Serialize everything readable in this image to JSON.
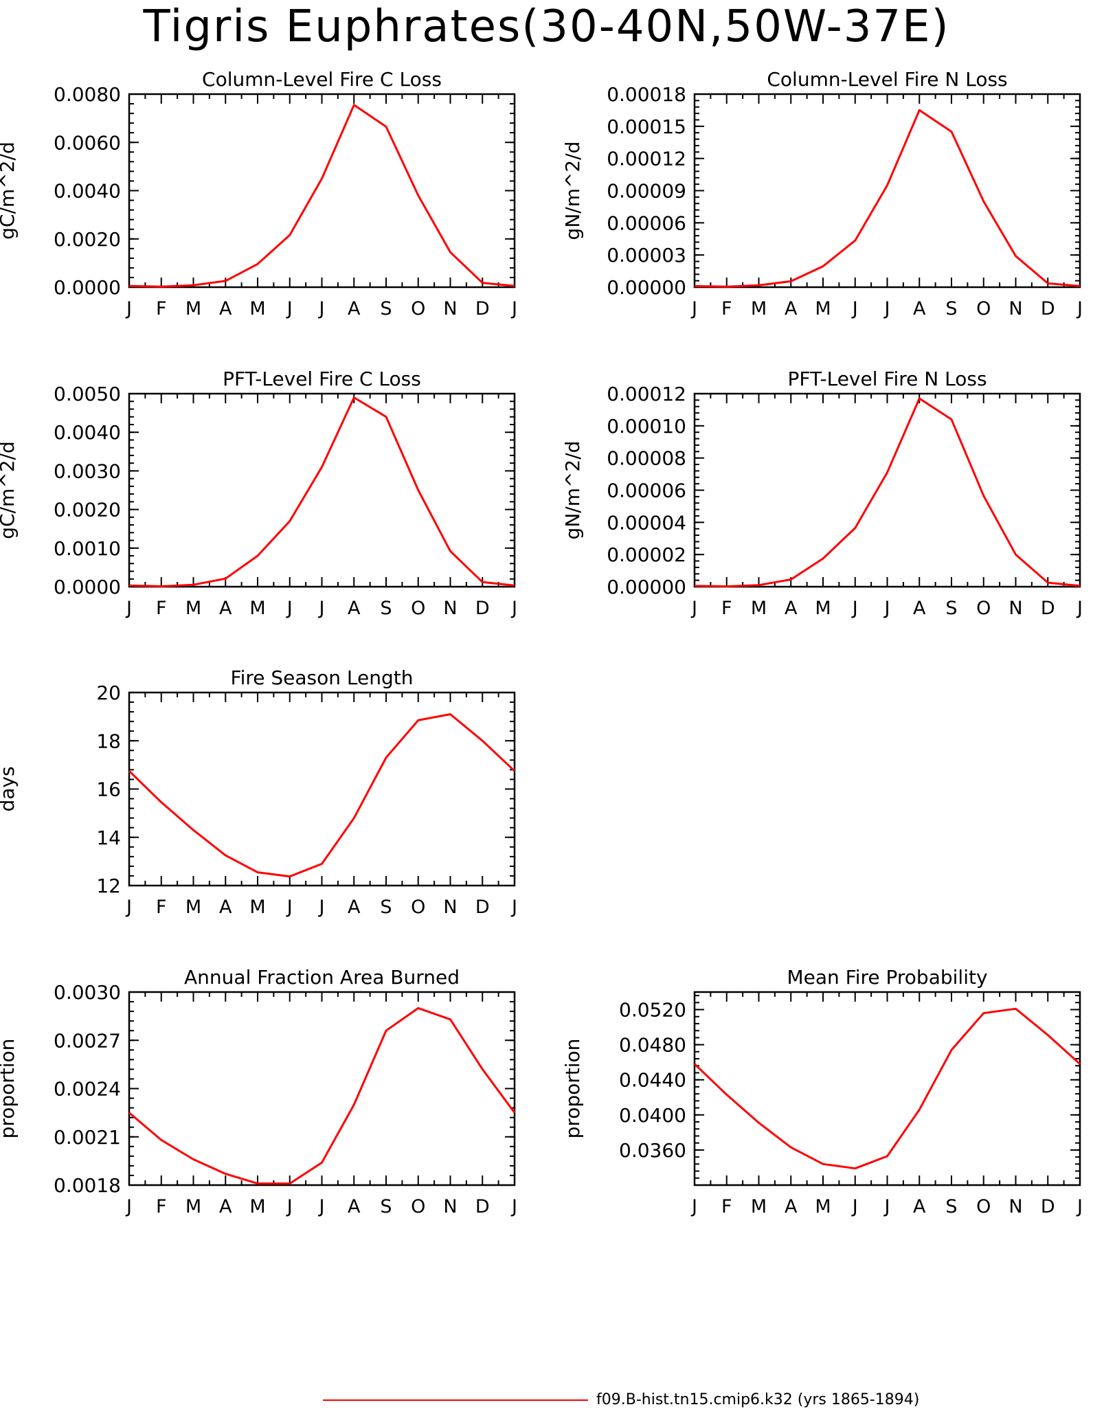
{
  "title": "Tigris Euphrates(30-40N,50W-37E)",
  "legend": {
    "label": "f09.B-hist.tn15.cmip6.k32 (yrs 1865-1894)",
    "color": "#ff0000"
  },
  "chart_data": [
    {
      "type": "line",
      "title": "Column-Level Fire C Loss",
      "ylabel": "gC/m^2/d",
      "categories": [
        "J",
        "F",
        "M",
        "A",
        "M",
        "J",
        "J",
        "A",
        "S",
        "O",
        "N",
        "D",
        "J"
      ],
      "ylim": [
        0,
        0.008
      ],
      "yticks": [
        "0.0000",
        "0.0020",
        "0.0040",
        "0.0060",
        "0.0080"
      ],
      "series": [
        {
          "name": "f09.B-hist.tn15.cmip6.k32 (yrs 1865-1894)",
          "color": "#ff0000",
          "values": [
            5e-05,
            2e-05,
            8e-05,
            0.00026,
            0.00096,
            0.00216,
            0.0045,
            0.00755,
            0.00665,
            0.0038,
            0.00145,
            0.00018,
            5e-05
          ]
        }
      ]
    },
    {
      "type": "line",
      "title": "Column-Level Fire N Loss",
      "ylabel": "gN/m^2/d",
      "categories": [
        "J",
        "F",
        "M",
        "A",
        "M",
        "J",
        "J",
        "A",
        "S",
        "O",
        "N",
        "D",
        "J"
      ],
      "ylim": [
        0,
        0.00018
      ],
      "yticks": [
        "0.00000",
        "0.00003",
        "0.00006",
        "0.00009",
        "0.00012",
        "0.00015",
        "0.00018"
      ],
      "series": [
        {
          "name": "f09.B-hist.tn15.cmip6.k32 (yrs 1865-1894)",
          "color": "#ff0000",
          "values": [
            1e-06,
            5e-07,
            1.8e-06,
            5.5e-06,
            1.95e-05,
            4.35e-05,
            9.5e-05,
            0.000165,
            0.000145,
            8e-05,
            2.9e-05,
            3.5e-06,
            1e-06
          ]
        }
      ]
    },
    {
      "type": "line",
      "title": "PFT-Level Fire C Loss",
      "ylabel": "gC/m^2/d",
      "categories": [
        "J",
        "F",
        "M",
        "A",
        "M",
        "J",
        "J",
        "A",
        "S",
        "O",
        "N",
        "D",
        "J"
      ],
      "ylim": [
        0,
        0.005
      ],
      "yticks": [
        "0.0000",
        "0.0010",
        "0.0020",
        "0.0030",
        "0.0040",
        "0.0050"
      ],
      "series": [
        {
          "name": "f09.B-hist.tn15.cmip6.k32 (yrs 1865-1894)",
          "color": "#ff0000",
          "values": [
            3e-05,
            1e-05,
            5e-05,
            0.00021,
            0.0008,
            0.0017,
            0.0031,
            0.0049,
            0.0044,
            0.0025,
            0.00092,
            0.00012,
            3e-05
          ]
        }
      ]
    },
    {
      "type": "line",
      "title": "PFT-Level Fire N Loss",
      "ylabel": "gN/m^2/d",
      "categories": [
        "J",
        "F",
        "M",
        "A",
        "M",
        "J",
        "J",
        "A",
        "S",
        "O",
        "N",
        "D",
        "J"
      ],
      "ylim": [
        0,
        0.00012
      ],
      "yticks": [
        "0.00000",
        "0.00002",
        "0.00004",
        "0.00006",
        "0.00008",
        "0.00010",
        "0.00012"
      ],
      "series": [
        {
          "name": "f09.B-hist.tn15.cmip6.k32 (yrs 1865-1894)",
          "color": "#ff0000",
          "values": [
            5e-07,
            2e-07,
            1e-06,
            4.5e-06,
            1.75e-05,
            3.65e-05,
            7.1e-05,
            0.000117,
            0.000104,
            5.65e-05,
            2e-05,
            2.5e-06,
            5e-07
          ]
        }
      ]
    },
    {
      "type": "line",
      "title": "Fire Season Length",
      "ylabel": "days",
      "categories": [
        "J",
        "F",
        "M",
        "A",
        "M",
        "J",
        "J",
        "A",
        "S",
        "O",
        "N",
        "D",
        "J"
      ],
      "ylim": [
        12,
        20
      ],
      "yticks": [
        "12",
        "14",
        "16",
        "18",
        "20"
      ],
      "series": [
        {
          "name": "f09.B-hist.tn15.cmip6.k32 (yrs 1865-1894)",
          "color": "#ff0000",
          "values": [
            16.75,
            15.45,
            14.3,
            13.25,
            12.55,
            12.38,
            12.9,
            14.8,
            17.3,
            18.85,
            19.1,
            18.0,
            16.75
          ]
        }
      ]
    },
    {
      "type": "line",
      "title": "Annual Fraction Area Burned",
      "ylabel": "proportion",
      "categories": [
        "J",
        "F",
        "M",
        "A",
        "M",
        "J",
        "J",
        "A",
        "S",
        "O",
        "N",
        "D",
        "J"
      ],
      "ylim": [
        0.0018,
        0.003
      ],
      "yticks": [
        "0.0018",
        "0.0021",
        "0.0024",
        "0.0027",
        "0.0030"
      ],
      "series": [
        {
          "name": "f09.B-hist.tn15.cmip6.k32 (yrs 1865-1894)",
          "color": "#ff0000",
          "values": [
            0.00225,
            0.00208,
            0.00196,
            0.00187,
            0.00181,
            0.00181,
            0.00194,
            0.0023,
            0.00276,
            0.0029,
            0.00283,
            0.00252,
            0.00225
          ]
        }
      ]
    },
    {
      "type": "line",
      "title": "Mean Fire Probability",
      "ylabel": "proportion",
      "categories": [
        "J",
        "F",
        "M",
        "A",
        "M",
        "J",
        "J",
        "A",
        "S",
        "O",
        "N",
        "D",
        "J"
      ],
      "ylim": [
        0.032,
        0.054
      ],
      "yticks": [
        "0.0360",
        "0.0400",
        "0.0440",
        "0.0480",
        "0.0520"
      ],
      "series": [
        {
          "name": "f09.B-hist.tn15.cmip6.k32 (yrs 1865-1894)",
          "color": "#ff0000",
          "values": [
            0.0458,
            0.0423,
            0.0391,
            0.0363,
            0.0344,
            0.0339,
            0.0353,
            0.0406,
            0.0474,
            0.0516,
            0.0521,
            0.0491,
            0.0458
          ]
        }
      ]
    }
  ]
}
